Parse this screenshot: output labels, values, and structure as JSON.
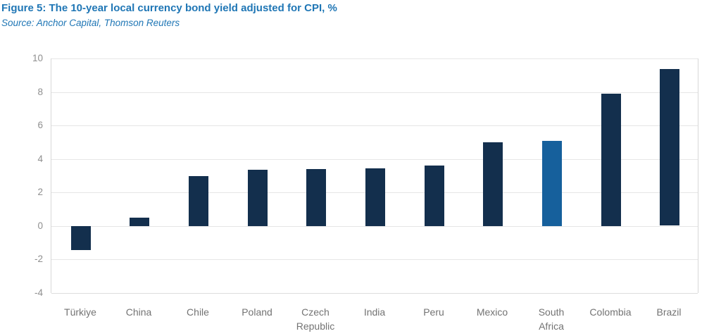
{
  "header": {
    "title": "Figure 5: The 10-year local currency bond yield adjusted for CPI, %",
    "source": "Source: Anchor Capital, Thomson Reuters"
  },
  "colors": {
    "title_blue": "#1F76B5",
    "bar_dark_navy": "#132F4D",
    "bar_highlight_blue": "#16609C",
    "gridline_gray": "#E6E6E6",
    "tick_label_gray": "#8F8F8F",
    "category_label_gray": "#737373"
  },
  "chart_data": {
    "type": "bar",
    "title": "Figure 5: The 10-year local currency bond yield adjusted for CPI, %",
    "subtitle": "Source: Anchor Capital, Thomson Reuters",
    "categories": [
      "Türkiye",
      "China",
      "Chile",
      "Poland",
      "Czech Republic",
      "India",
      "Peru",
      "Mexico",
      "South Africa",
      "Colombia",
      "Brazil"
    ],
    "values": [
      -1.45,
      0.5,
      3.0,
      3.35,
      3.4,
      3.45,
      3.6,
      5.0,
      5.1,
      7.9,
      9.35
    ],
    "highlight_category": "South Africa",
    "highlight_index": 8,
    "xlabel": "",
    "ylabel": "",
    "ylim": [
      -4,
      10
    ],
    "ytick_labels": [
      "10",
      "8",
      "6",
      "4",
      "2",
      "0",
      "-2",
      "-4"
    ],
    "yticks": [
      10,
      8,
      6,
      4,
      2,
      0,
      -2,
      -4
    ],
    "grid": true,
    "legend": "none"
  }
}
